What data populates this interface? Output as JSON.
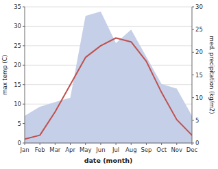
{
  "chart_data": {
    "type": "line",
    "x_label": "date (month)",
    "y_label": "max temp (C)",
    "y2_label": "med. precipitation (kg/m2)",
    "categories": [
      "Jan",
      "Feb",
      "Mar",
      "Apr",
      "May",
      "Jun",
      "Jul",
      "Aug",
      "Sep",
      "Oct",
      "Nov",
      "Dec"
    ],
    "series": [
      {
        "type": "area",
        "color": "#c5cfe8",
        "axis": "y2",
        "values": [
          6,
          8,
          9,
          10,
          28,
          29,
          22,
          25,
          19,
          13,
          12,
          6
        ]
      },
      {
        "type": "line",
        "color": "#c0504d",
        "values": [
          1,
          2,
          8,
          15,
          22,
          25,
          27,
          26,
          21,
          13,
          6,
          2
        ]
      }
    ],
    "ylim": [
      0,
      35
    ],
    "yticks": [
      0,
      5,
      10,
      15,
      20,
      25,
      30,
      35
    ],
    "y2lim": [
      0,
      30
    ],
    "y2ticks": [
      0,
      5,
      10,
      15,
      20,
      25,
      30
    ],
    "grid": true
  }
}
